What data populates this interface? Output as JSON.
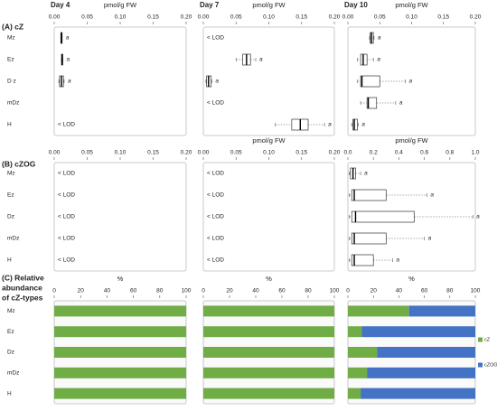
{
  "panel_labels": {
    "A": "(A) cZ",
    "B": "(B) cZOG",
    "C": [
      "(C) Relative",
      "abundance",
      "of cZ-types"
    ]
  },
  "chart_data": [
    {
      "type": "box",
      "title": "Day 4",
      "xlabel": "pmol/g FW",
      "categories": [
        "Mz",
        "Ez",
        "D z",
        "mDz",
        "H"
      ],
      "xlim": [
        0,
        0.2
      ],
      "xticks": [
        {
          "value": 0,
          "label": "0.00"
        },
        {
          "value": 0.05,
          "label": "0.05"
        },
        {
          "value": 0.1,
          "label": "0.10"
        },
        {
          "value": 0.15,
          "label": "0.15"
        },
        {
          "value": 0.2,
          "label": "0.20"
        }
      ],
      "boxes": [
        {
          "whislo": 0.01,
          "q1": 0.01,
          "med": 0.011,
          "q3": 0.012,
          "whishi": 0.012
        },
        {
          "whislo": 0.011,
          "q1": 0.011,
          "med": 0.012,
          "q3": 0.013,
          "whishi": 0.013
        },
        {
          "whislo": 0.007,
          "q1": 0.008,
          "med": 0.011,
          "q3": 0.014,
          "whishi": 0.015
        },
        null,
        null
      ],
      "notes": [
        "a",
        "a",
        "a",
        null,
        "< LOD"
      ]
    },
    {
      "type": "box",
      "title": "Day 7",
      "xlabel": "pmol/g FW",
      "xlim": [
        0,
        0.2
      ],
      "xticks": [
        {
          "value": 0,
          "label": "0.00"
        },
        {
          "value": 0.05,
          "label": "0.05"
        },
        {
          "value": 0.1,
          "label": "0.10"
        },
        {
          "value": 0.15,
          "label": "0.15"
        },
        {
          "value": 0.2,
          "label": "0.20"
        }
      ],
      "boxes": [
        null,
        {
          "whislo": 0.05,
          "q1": 0.06,
          "med": 0.066,
          "q3": 0.072,
          "whishi": 0.08
        },
        {
          "whislo": 0.004,
          "q1": 0.005,
          "med": 0.008,
          "q3": 0.012,
          "whishi": 0.013
        },
        null,
        {
          "whislo": 0.11,
          "q1": 0.135,
          "med": 0.148,
          "q3": 0.16,
          "whishi": 0.185
        }
      ],
      "notes": [
        "< LOD",
        "a",
        "a",
        "< LOD",
        "a"
      ]
    },
    {
      "type": "box",
      "title": "Day 10",
      "xlabel": "pmol/g FW",
      "xlim": [
        0,
        0.2
      ],
      "xticks": [
        {
          "value": 0,
          "label": "0.00"
        },
        {
          "value": 0.05,
          "label": "0.05"
        },
        {
          "value": 0.1,
          "label": "0.10"
        },
        {
          "value": 0.15,
          "label": "0.15"
        },
        {
          "value": 0.2,
          "label": "0.20"
        }
      ],
      "boxes": [
        {
          "whislo": 0.034,
          "q1": 0.035,
          "med": 0.037,
          "q3": 0.04,
          "whishi": 0.041
        },
        {
          "whislo": 0.015,
          "q1": 0.02,
          "med": 0.024,
          "q3": 0.03,
          "whishi": 0.04
        },
        {
          "whislo": 0.015,
          "q1": 0.02,
          "med": 0.022,
          "q3": 0.05,
          "whishi": 0.09
        },
        {
          "whislo": 0.02,
          "q1": 0.03,
          "med": 0.032,
          "q3": 0.045,
          "whishi": 0.075
        },
        {
          "whislo": 0.006,
          "q1": 0.008,
          "med": 0.01,
          "q3": 0.015,
          "whishi": 0.016
        }
      ],
      "notes": [
        "a",
        "a",
        "a",
        "a",
        "a"
      ]
    },
    {
      "type": "box",
      "categories": [
        "Mz",
        "Ez",
        "Dz",
        "mDz",
        "H"
      ],
      "xlim": [
        0,
        0.2
      ],
      "xticks": [
        {
          "value": 0,
          "label": "0.00"
        },
        {
          "value": 0.05,
          "label": "0.05"
        },
        {
          "value": 0.1,
          "label": "0.10"
        },
        {
          "value": 0.15,
          "label": "0.15"
        },
        {
          "value": 0.2,
          "label": "0.20"
        }
      ],
      "boxes": [
        null,
        null,
        null,
        null,
        null
      ],
      "notes": [
        "< LOD",
        "< LOD",
        "< LOD",
        "< LOD",
        "< LOD"
      ]
    },
    {
      "type": "box",
      "xlabel": "pmol/g FW",
      "xlim": [
        0,
        0.2
      ],
      "xticks": [
        {
          "value": 0,
          "label": "0.00"
        },
        {
          "value": 0.05,
          "label": "0.05"
        },
        {
          "value": 0.1,
          "label": "0.10"
        },
        {
          "value": 0.15,
          "label": "0.15"
        },
        {
          "value": 0.2,
          "label": "0.20"
        }
      ],
      "boxes": [
        null,
        null,
        null,
        null,
        null
      ],
      "notes": [
        "< LOD",
        "< LOD",
        "< LOD",
        "< LOD",
        "< LOD"
      ]
    },
    {
      "type": "box",
      "xlabel": "pmol/g FW",
      "xlim": [
        0,
        1
      ],
      "xticks": [
        {
          "value": 0,
          "label": "0.0"
        },
        0.2,
        0.4,
        0.6,
        0.8,
        {
          "value": 1,
          "label": "1.0"
        }
      ],
      "boxes": [
        {
          "whislo": 0.01,
          "q1": 0.02,
          "med": 0.04,
          "q3": 0.06,
          "whishi": 0.1
        },
        {
          "whislo": 0.01,
          "q1": 0.03,
          "med": 0.05,
          "q3": 0.3,
          "whishi": 0.62
        },
        {
          "whislo": 0.01,
          "q1": 0.03,
          "med": 0.06,
          "q3": 0.52,
          "whishi": 0.98
        },
        {
          "whislo": 0.01,
          "q1": 0.03,
          "med": 0.05,
          "q3": 0.3,
          "whishi": 0.6
        },
        {
          "whislo": 0.01,
          "q1": 0.03,
          "med": 0.05,
          "q3": 0.2,
          "whishi": 0.35
        }
      ],
      "notes": [
        "a",
        "a",
        "a",
        "a",
        "a"
      ]
    },
    {
      "type": "stacked_bar",
      "xlabel": "%",
      "categories": [
        "Mz",
        "Ez",
        "Dz",
        "mDz",
        "H"
      ],
      "xlim": [
        0,
        100
      ],
      "xticks": [
        0,
        20,
        40,
        60,
        80,
        100
      ],
      "series": [
        {
          "color": "#70ad47",
          "values": [
            100,
            100,
            100,
            100,
            100
          ]
        },
        {
          "color": "#4472c4",
          "values": [
            0,
            0,
            0,
            0,
            0
          ]
        }
      ]
    },
    {
      "type": "stacked_bar",
      "xlabel": "%",
      "xlim": [
        0,
        100
      ],
      "xticks": [
        0,
        20,
        40,
        60,
        80,
        100
      ],
      "series": [
        {
          "color": "#70ad47",
          "values": [
            100,
            100,
            100,
            100,
            100
          ]
        },
        {
          "color": "#4472c4",
          "values": [
            0,
            0,
            0,
            0,
            0
          ]
        }
      ]
    },
    {
      "type": "stacked_bar",
      "xlabel": "%",
      "xlim": [
        0,
        100
      ],
      "xticks": [
        0,
        20,
        40,
        60,
        80,
        100
      ],
      "legend": "right",
      "series": [
        {
          "name": "cZ",
          "color": "#70ad47",
          "values": [
            48,
            11,
            23,
            15,
            10
          ]
        },
        {
          "name": "cZOG",
          "color": "#4472c4",
          "values": [
            52,
            89,
            77,
            85,
            90
          ]
        }
      ]
    }
  ]
}
